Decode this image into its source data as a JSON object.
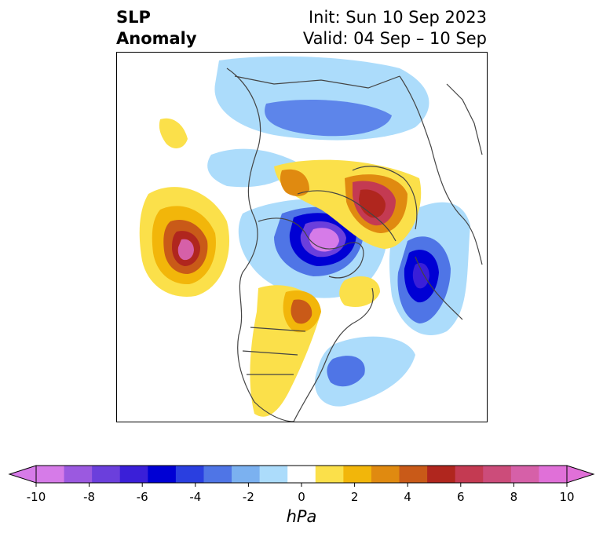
{
  "title": {
    "variable_line1": "SLP",
    "variable_line2": "Anomaly",
    "init": "Init: Sun 10 Sep 2023",
    "valid": "Valid: 04 Sep – 10 Sep"
  },
  "colorbar": {
    "units": "hPa",
    "ticks": [
      "-10",
      "-8",
      "-6",
      "-4",
      "-2",
      "0",
      "2",
      "4",
      "6",
      "8",
      "10"
    ],
    "colors": [
      "#d67be8",
      "#9b59e0",
      "#6b3fdc",
      "#3a1fd8",
      "#0000d4",
      "#2a3fe0",
      "#4f75e6",
      "#7bb1f0",
      "#acdcfb",
      "#ffffff",
      "#fbe04a",
      "#f2b60a",
      "#e08a10",
      "#c95a18",
      "#b0261e",
      "#c43a52",
      "#cc4c7a",
      "#d660a8",
      "#e070d8"
    ],
    "extend": "both"
  },
  "map": {
    "projection": "polar-stereographic",
    "region": "Northern Hemisphere"
  }
}
